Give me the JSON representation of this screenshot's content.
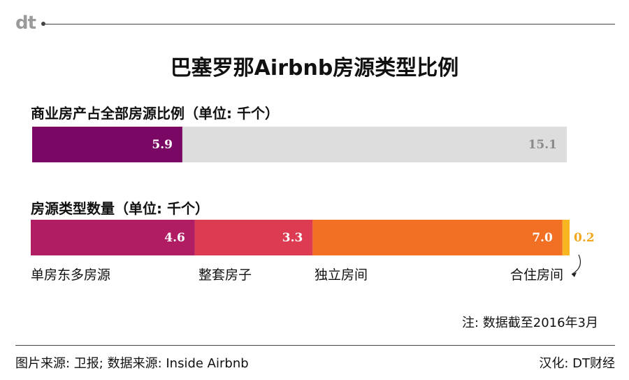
{
  "header": {
    "logo": "dt"
  },
  "title": "巴塞罗那Airbnb房源类型比例",
  "chart_data": [
    {
      "type": "bar",
      "stacked": true,
      "orientation": "horizontal",
      "title": "商业房产占全部房源比例（单位: 千个）",
      "unit": "千个",
      "series": [
        {
          "value": 5.9,
          "label": "5.9",
          "color": "#7b0764"
        },
        {
          "value": 15.1,
          "label": "15.1",
          "color": "#dddddd"
        }
      ]
    },
    {
      "type": "bar",
      "stacked": true,
      "orientation": "horizontal",
      "title": "房源类型数量（单位: 千个）",
      "unit": "千个",
      "series": [
        {
          "name": "单房东多房源",
          "value": 4.6,
          "label": "4.6",
          "color": "#b01d63"
        },
        {
          "name": "整套房子",
          "value": 3.3,
          "label": "3.3",
          "color": "#dc3b52"
        },
        {
          "name": "独立房间",
          "value": 7.0,
          "label": "7.0",
          "color": "#f27023"
        },
        {
          "name": "合住房间",
          "value": 0.2,
          "label": "0.2",
          "color": "#f8b722"
        }
      ]
    }
  ],
  "note": "注: 数据截至2016年3月",
  "footer": {
    "source": "图片来源: 卫报; 数据来源: Inside Airbnb",
    "credit": "汉化: DT财经"
  }
}
